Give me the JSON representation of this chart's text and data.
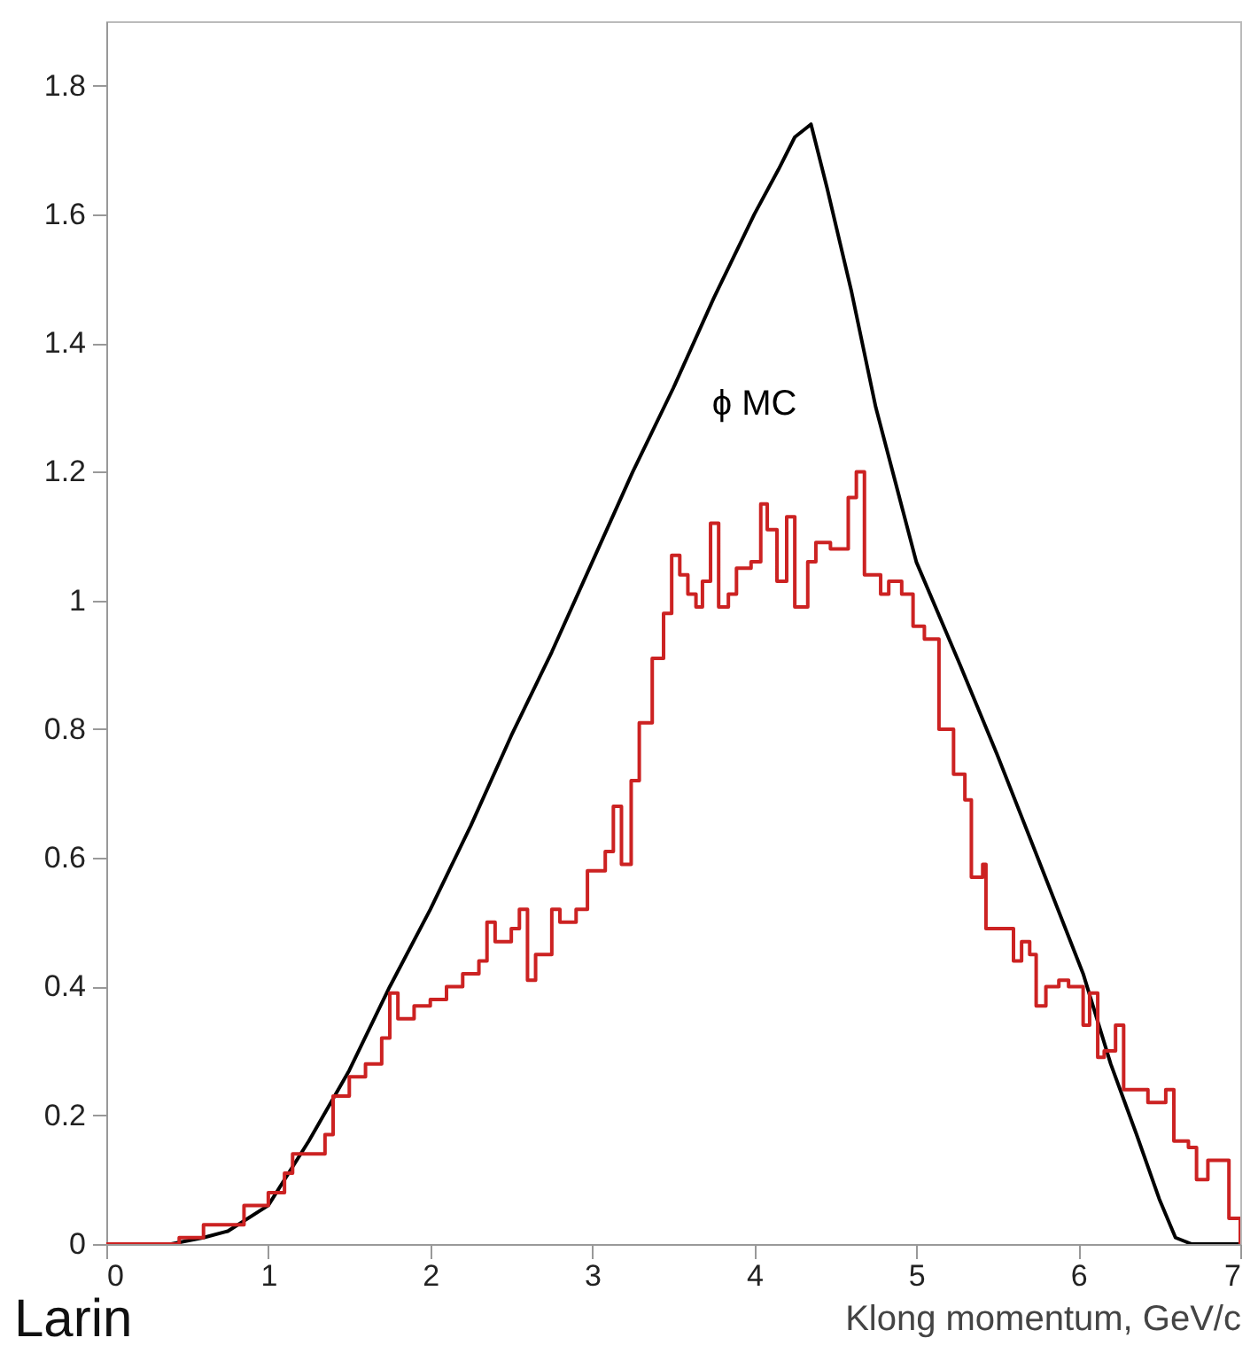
{
  "chart_data": {
    "type": "step",
    "xlabel": "Klong momentum, GeV/c",
    "annotations": [
      "Larin"
    ],
    "xlim": [
      0,
      7
    ],
    "xticks": [
      0,
      1,
      2,
      3,
      4,
      5,
      6,
      7
    ],
    "ylim": [
      0,
      1.9
    ],
    "yticks": [
      0,
      0.2,
      0.4,
      0.6,
      0.8,
      1,
      1.2,
      1.4,
      1.6,
      1.8
    ],
    "series": [
      {
        "name": "ϕ MC",
        "type": "line",
        "color": "#000000",
        "x": [
          0,
          0.4,
          0.6,
          0.75,
          1.0,
          1.25,
          1.5,
          1.75,
          2.0,
          2.25,
          2.5,
          2.75,
          3.0,
          3.25,
          3.5,
          3.75,
          4.0,
          4.15,
          4.25,
          4.35,
          4.45,
          4.6,
          4.75,
          5.0,
          5.27,
          5.5,
          5.75,
          6.03,
          6.2,
          6.36,
          6.5,
          6.6,
          6.7,
          7
        ],
        "values": [
          0,
          0,
          0.01,
          0.02,
          0.06,
          0.16,
          0.27,
          0.4,
          0.52,
          0.65,
          0.79,
          0.92,
          1.06,
          1.2,
          1.33,
          1.47,
          1.6,
          1.67,
          1.72,
          1.74,
          1.64,
          1.48,
          1.3,
          1.06,
          0.9,
          0.76,
          0.6,
          0.42,
          0.28,
          0.17,
          0.07,
          0.01,
          0,
          0
        ]
      },
      {
        "color": "#cc2222",
        "x": [
          0,
          0.45,
          0.6,
          0.85,
          1.0,
          1.1,
          1.15,
          1.35,
          1.4,
          1.5,
          1.6,
          1.7,
          1.75,
          1.8,
          1.9,
          2.0,
          2.1,
          2.2,
          2.3,
          2.35,
          2.4,
          2.5,
          2.55,
          2.6,
          2.65,
          2.75,
          2.8,
          2.9,
          2.97,
          3.08,
          3.13,
          3.18,
          3.24,
          3.29,
          3.37,
          3.44,
          3.49,
          3.54,
          3.59,
          3.64,
          3.68,
          3.73,
          3.78,
          3.84,
          3.89,
          3.98,
          4.04,
          4.08,
          4.14,
          4.2,
          4.25,
          4.33,
          4.38,
          4.47,
          4.58,
          4.63,
          4.68,
          4.78,
          4.83,
          4.91,
          4.98,
          5.05,
          5.14,
          5.23,
          5.3,
          5.34,
          5.41,
          5.43,
          5.6,
          5.65,
          5.7,
          5.74,
          5.8,
          5.88,
          5.94,
          6.03,
          6.07,
          6.12,
          6.16,
          6.23,
          6.28,
          6.43,
          6.54,
          6.59,
          6.68,
          6.73,
          6.8,
          6.93,
          7
        ],
        "values": [
          0,
          0.01,
          0.03,
          0.06,
          0.08,
          0.11,
          0.14,
          0.17,
          0.23,
          0.26,
          0.28,
          0.32,
          0.39,
          0.35,
          0.37,
          0.38,
          0.4,
          0.42,
          0.44,
          0.5,
          0.47,
          0.49,
          0.52,
          0.41,
          0.45,
          0.52,
          0.5,
          0.52,
          0.58,
          0.61,
          0.68,
          0.59,
          0.72,
          0.81,
          0.91,
          0.98,
          1.07,
          1.04,
          1.01,
          0.99,
          1.03,
          1.12,
          0.99,
          1.01,
          1.05,
          1.06,
          1.15,
          1.11,
          1.03,
          1.13,
          0.99,
          1.06,
          1.09,
          1.08,
          1.16,
          1.2,
          1.04,
          1.01,
          1.03,
          1.01,
          0.96,
          0.94,
          0.8,
          0.73,
          0.69,
          0.57,
          0.59,
          0.49,
          0.44,
          0.47,
          0.45,
          0.37,
          0.4,
          0.41,
          0.4,
          0.34,
          0.39,
          0.29,
          0.3,
          0.34,
          0.24,
          0.22,
          0.24,
          0.16,
          0.15,
          0.1,
          0.13,
          0.04,
          0
        ]
      }
    ]
  }
}
